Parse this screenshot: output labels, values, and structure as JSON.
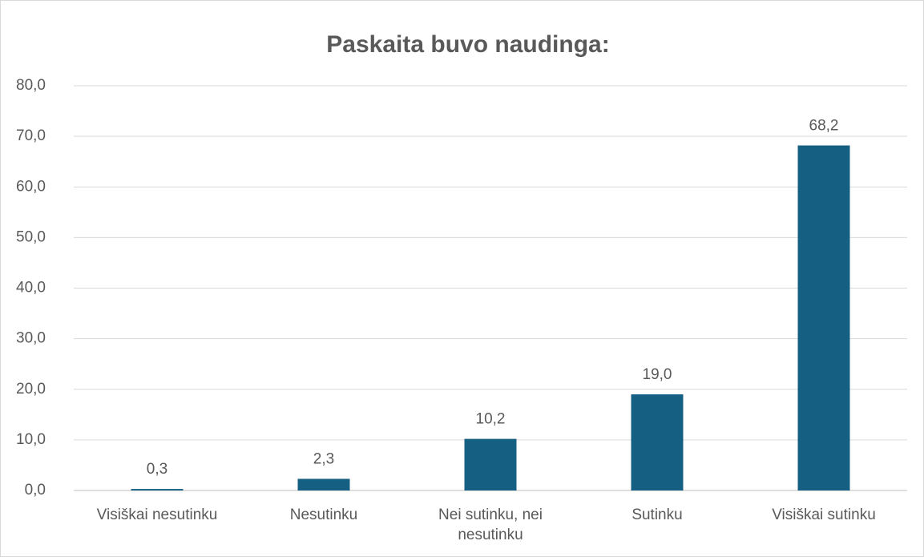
{
  "chart_data": {
    "type": "bar",
    "title": "Paskaita buvo naudinga:",
    "categories": [
      "Visiškai nesutinku",
      "Nesutinku",
      "Nei sutinku, nei nesutinku",
      "Sutinku",
      "Visiškai sutinku"
    ],
    "values": [
      0.3,
      2.3,
      10.2,
      19.0,
      68.2
    ],
    "value_labels": [
      "0,3",
      "2,3",
      "10,2",
      "19,0",
      "68,2"
    ],
    "color": "#156082",
    "ylim": [
      0,
      80
    ],
    "yticks": [
      {
        "value": 0,
        "label": "0,0"
      },
      {
        "value": 10,
        "label": "10,0"
      },
      {
        "value": 20,
        "label": "20,0"
      },
      {
        "value": 30,
        "label": "30,0"
      },
      {
        "value": 40,
        "label": "40,0"
      },
      {
        "value": 50,
        "label": "50,0"
      },
      {
        "value": 60,
        "label": "60,0"
      },
      {
        "value": 70,
        "label": "70,0"
      },
      {
        "value": 80,
        "label": "80,0"
      }
    ],
    "grid": true
  }
}
